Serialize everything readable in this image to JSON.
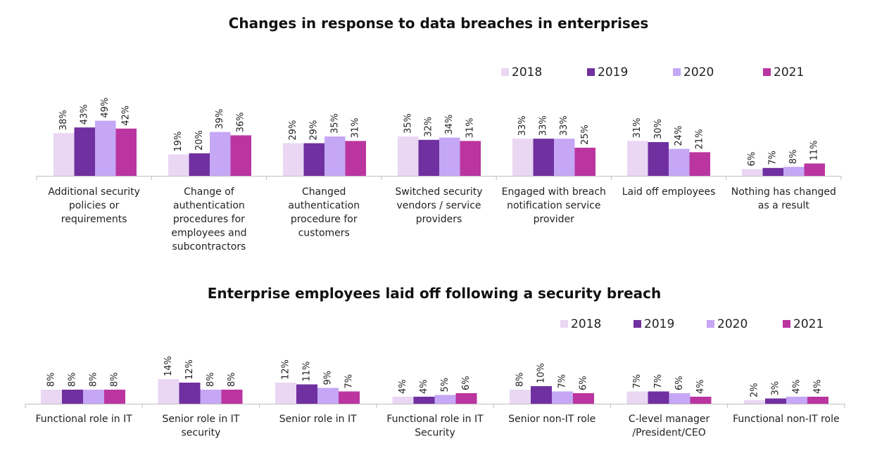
{
  "colors": {
    "2018": "#e9d7f3",
    "2019": "#7030a0",
    "2020": "#c5a7f5",
    "2021": "#bb35a0"
  },
  "chart_data": [
    {
      "type": "bar",
      "title": "Changes in response to data breaches in enterprises",
      "categories": [
        "Additional security policies or requirements",
        "Change of authentication procedures for employees and subcontractors",
        "Changed authentication procedure for customers",
        "Switched security vendors / service providers",
        "Engaged with breach notification service provider",
        "Laid off employees",
        "Nothing has changed as a result"
      ],
      "category_lines": [
        [
          "Additional security",
          "policies or",
          "requirements"
        ],
        [
          "Change of",
          "authentication",
          "procedures for",
          "employees and",
          "subcontractors"
        ],
        [
          "Changed",
          "authentication",
          "procedure for",
          "customers"
        ],
        [
          "Switched security",
          "vendors / service",
          "providers"
        ],
        [
          "Engaged with breach",
          "notification service",
          "provider"
        ],
        [
          "Laid off employees"
        ],
        [
          "Nothing has changed",
          "as a result"
        ]
      ],
      "series": [
        {
          "name": "2018",
          "values": [
            38,
            19,
            29,
            35,
            33,
            31,
            6
          ]
        },
        {
          "name": "2019",
          "values": [
            43,
            20,
            29,
            32,
            33,
            30,
            7
          ]
        },
        {
          "name": "2020",
          "values": [
            49,
            39,
            35,
            34,
            33,
            24,
            8
          ]
        },
        {
          "name": "2021",
          "values": [
            42,
            36,
            31,
            31,
            25,
            21,
            11
          ]
        }
      ],
      "value_suffix": "%",
      "ylim": [
        0,
        60
      ],
      "grid": false,
      "legend": "top-right"
    },
    {
      "type": "bar",
      "title": "Enterprise employees laid off following a security breach",
      "categories": [
        "Functional role in IT",
        "Senior role in IT security",
        "Senior role in IT",
        "Functional role in IT Security",
        "Senior non-IT role",
        "C-level manager /President/CEO",
        "Functional non-IT role"
      ],
      "category_lines": [
        [
          "Functional role in IT"
        ],
        [
          "Senior role in IT",
          "security"
        ],
        [
          "Senior role in IT"
        ],
        [
          "Functional role in IT",
          "Security"
        ],
        [
          "Senior non-IT role"
        ],
        [
          "C-level manager",
          "/President/CEO"
        ],
        [
          "Functional non-IT role"
        ]
      ],
      "series": [
        {
          "name": "2018",
          "values": [
            8,
            14,
            12,
            4,
            8,
            7,
            2
          ]
        },
        {
          "name": "2019",
          "values": [
            8,
            12,
            11,
            4,
            10,
            7,
            3
          ]
        },
        {
          "name": "2020",
          "values": [
            8,
            8,
            9,
            5,
            7,
            6,
            4
          ]
        },
        {
          "name": "2021",
          "values": [
            8,
            8,
            7,
            6,
            6,
            4,
            4
          ]
        }
      ],
      "value_suffix": "%",
      "ylim": [
        0,
        25
      ],
      "grid": false,
      "legend": "top-right"
    }
  ]
}
